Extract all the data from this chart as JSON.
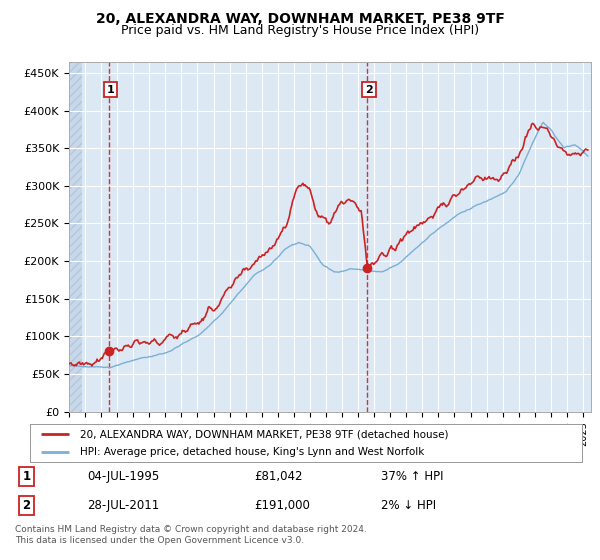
{
  "title": "20, ALEXANDRA WAY, DOWNHAM MARKET, PE38 9TF",
  "subtitle": "Price paid vs. HM Land Registry's House Price Index (HPI)",
  "ylabel_ticks": [
    "£0",
    "£50K",
    "£100K",
    "£150K",
    "£200K",
    "£250K",
    "£300K",
    "£350K",
    "£400K",
    "£450K"
  ],
  "ytick_values": [
    0,
    50000,
    100000,
    150000,
    200000,
    250000,
    300000,
    350000,
    400000,
    450000
  ],
  "ylim": [
    0,
    465000
  ],
  "xlim_start": 1993.0,
  "xlim_end": 2025.5,
  "xticks": [
    1993,
    1994,
    1995,
    1996,
    1997,
    1998,
    1999,
    2000,
    2001,
    2002,
    2003,
    2004,
    2005,
    2006,
    2007,
    2008,
    2009,
    2010,
    2011,
    2012,
    2013,
    2014,
    2015,
    2016,
    2017,
    2018,
    2019,
    2020,
    2021,
    2022,
    2023,
    2024,
    2025
  ],
  "hpi_color": "#7bafd4",
  "price_color": "#cc2222",
  "vline_color": "#cc2222",
  "sale1_x": 1995.5,
  "sale1_y": 81042,
  "sale2_x": 2011.58,
  "sale2_y": 191000,
  "annotation_1": {
    "label": "1",
    "date": "04-JUL-1995",
    "price": "£81,042",
    "hpi_rel": "37% ↑ HPI"
  },
  "annotation_2": {
    "label": "2",
    "date": "28-JUL-2011",
    "price": "£191,000",
    "hpi_rel": "2% ↓ HPI"
  },
  "legend_line1": "20, ALEXANDRA WAY, DOWNHAM MARKET, PE38 9TF (detached house)",
  "legend_line2": "HPI: Average price, detached house, King's Lynn and West Norfolk",
  "footer": "Contains HM Land Registry data © Crown copyright and database right 2024.\nThis data is licensed under the Open Government Licence v3.0.",
  "bg_color": "#ffffff",
  "plot_bg_color": "#dce9f5",
  "hatch_bg_color": "#c8d8e8",
  "grid_color": "#ffffff",
  "title_fontsize": 10,
  "subtitle_fontsize": 9
}
